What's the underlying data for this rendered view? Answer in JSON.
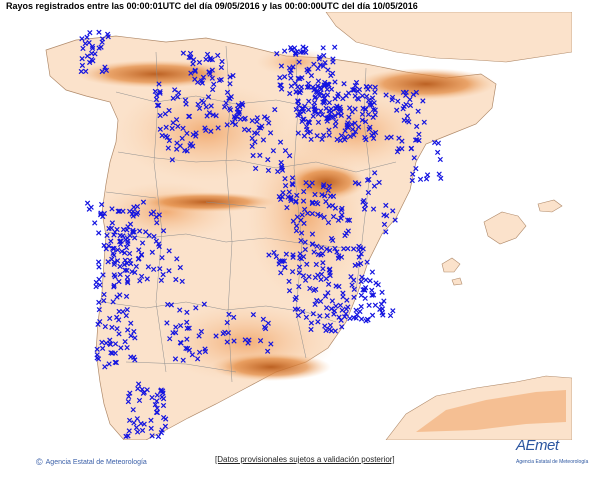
{
  "header": {
    "title": "Rayos registrados entre las 00:00:01UTC del día 09/05/2016 y las 00:00:00UTC del día 10/05/2016"
  },
  "map": {
    "colors": {
      "background": "#ffffff",
      "land_low": "#fdeee0",
      "land_mid": "#f8c89a",
      "land_high": "#e88a3e",
      "land_peak": "#c0611d",
      "border": "#9a9a9a",
      "lightning": "#1414e0"
    },
    "lightning_icon": "x-marker-icon"
  },
  "footer": {
    "copyright_icon": "copyright-icon",
    "agency": "Agencia Estatal de Meteorología",
    "disclaimer": "[Datos provisionales sujetos a validación posterior]",
    "logo_text": "AEmet",
    "logo_sub": "Agencia Estatal de Meteorología"
  }
}
